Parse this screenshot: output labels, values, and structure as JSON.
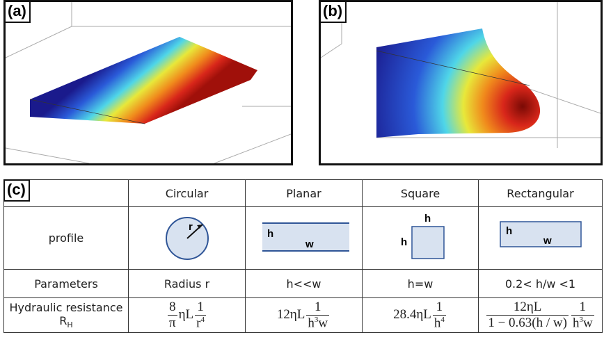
{
  "panels": [
    {
      "label": "(a)"
    },
    {
      "label": "(b)"
    }
  ],
  "table": {
    "label": "(c)",
    "columns": [
      "Circular",
      "Planar",
      "Square",
      "Rectangular"
    ],
    "row_headers": [
      "profile",
      "Parameters"
    ],
    "resistance_header": {
      "text": "Hydraulic resistance R",
      "sub": "H"
    },
    "profiles": {
      "circular": [
        "r"
      ],
      "planar": [
        "h",
        "w"
      ],
      "square": [
        "h",
        "h"
      ],
      "rectangular": [
        "h",
        "w"
      ]
    },
    "parameters": [
      "Radius r",
      "h<<w",
      "h=w",
      "0.2< h/w <1"
    ],
    "formulas": [
      [
        {
          "num": "8",
          "den": "π"
        },
        {
          "text": "ηL"
        },
        {
          "num": "1",
          "den": "r",
          "den_sup": "4"
        }
      ],
      [
        {
          "text": "12ηL"
        },
        {
          "num": "1",
          "den": "h",
          "den_sup": "3",
          "den_after": "w"
        }
      ],
      [
        {
          "text": "28.4ηL"
        },
        {
          "num": "1",
          "den": "h",
          "den_sup": "4"
        }
      ],
      [
        {
          "num": "12ηL",
          "den": "1 − 0.63(h / w)"
        },
        {
          "num": "1",
          "den": "h",
          "den_sup": "3",
          "den_after": "w"
        }
      ]
    ]
  }
}
